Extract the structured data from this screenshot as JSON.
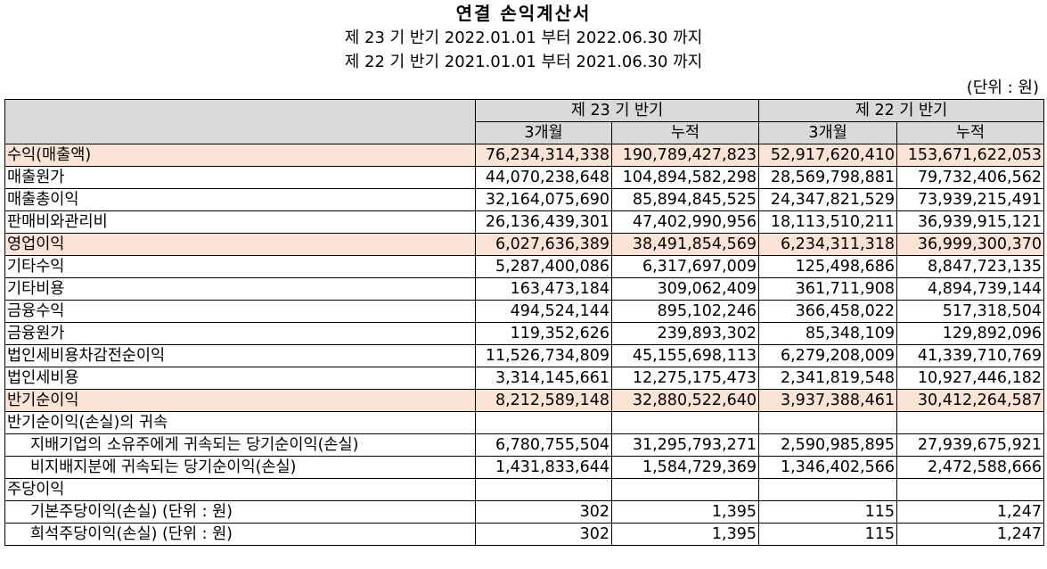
{
  "header": {
    "title": "연결 손익계산서",
    "period_current": "제 23 기 반기 2022.01.01 부터 2022.06.30 까지",
    "period_prior": "제 22 기 반기 2021.01.01 부터 2021.06.30 까지",
    "unit": "(단위 : 원)"
  },
  "table": {
    "period_headers": [
      "제 23 기 반기",
      "제 22 기 반기"
    ],
    "sub_headers": [
      "3개월",
      "누적",
      "3개월",
      "누적"
    ],
    "rows": [
      {
        "label": "수익(매출액)",
        "values": [
          "76,234,314,338",
          "190,789,427,823",
          "52,917,620,410",
          "153,671,622,053"
        ],
        "highlight": true,
        "indent": false
      },
      {
        "label": "매출원가",
        "values": [
          "44,070,238,648",
          "104,894,582,298",
          "28,569,798,881",
          "79,732,406,562"
        ],
        "highlight": false,
        "indent": false
      },
      {
        "label": "매출총이익",
        "values": [
          "32,164,075,690",
          "85,894,845,525",
          "24,347,821,529",
          "73,939,215,491"
        ],
        "highlight": false,
        "indent": false
      },
      {
        "label": "판매비와관리비",
        "values": [
          "26,136,439,301",
          "47,402,990,956",
          "18,113,510,211",
          "36,939,915,121"
        ],
        "highlight": false,
        "indent": false
      },
      {
        "label": "영업이익",
        "values": [
          "6,027,636,389",
          "38,491,854,569",
          "6,234,311,318",
          "36,999,300,370"
        ],
        "highlight": true,
        "indent": false
      },
      {
        "label": "기타수익",
        "values": [
          "5,287,400,086",
          "6,317,697,009",
          "125,498,686",
          "8,847,723,135"
        ],
        "highlight": false,
        "indent": false
      },
      {
        "label": "기타비용",
        "values": [
          "163,473,184",
          "309,062,409",
          "361,711,908",
          "4,894,739,144"
        ],
        "highlight": false,
        "indent": false
      },
      {
        "label": "금융수익",
        "values": [
          "494,524,144",
          "895,102,246",
          "366,458,022",
          "517,318,504"
        ],
        "highlight": false,
        "indent": false
      },
      {
        "label": "금융원가",
        "values": [
          "119,352,626",
          "239,893,302",
          "85,348,109",
          "129,892,096"
        ],
        "highlight": false,
        "indent": false
      },
      {
        "label": "법인세비용차감전순이익",
        "values": [
          "11,526,734,809",
          "45,155,698,113",
          "6,279,208,009",
          "41,339,710,769"
        ],
        "highlight": false,
        "indent": false
      },
      {
        "label": "법인세비용",
        "values": [
          "3,314,145,661",
          "12,275,175,473",
          "2,341,819,548",
          "10,927,446,182"
        ],
        "highlight": false,
        "indent": false
      },
      {
        "label": "반기순이익",
        "values": [
          "8,212,589,148",
          "32,880,522,640",
          "3,937,388,461",
          "30,412,264,587"
        ],
        "highlight": true,
        "indent": false
      },
      {
        "label": "반기순이익(손실)의 귀속",
        "values": [
          "",
          "",
          "",
          ""
        ],
        "highlight": false,
        "indent": false
      },
      {
        "label": "지배기업의 소유주에게 귀속되는 당기순이익(손실)",
        "values": [
          "6,780,755,504",
          "31,295,793,271",
          "2,590,985,895",
          "27,939,675,921"
        ],
        "highlight": false,
        "indent": true
      },
      {
        "label": "비지배지분에 귀속되는 당기순이익(손실)",
        "values": [
          "1,431,833,644",
          "1,584,729,369",
          "1,346,402,566",
          "2,472,588,666"
        ],
        "highlight": false,
        "indent": true
      },
      {
        "label": "주당이익",
        "values": [
          "",
          "",
          "",
          ""
        ],
        "highlight": false,
        "indent": false
      },
      {
        "label": "기본주당이익(손실) (단위 : 원)",
        "values": [
          "302",
          "1,395",
          "115",
          "1,247"
        ],
        "highlight": false,
        "indent": true
      },
      {
        "label": "희석주당이익(손실) (단위 : 원)",
        "values": [
          "302",
          "1,395",
          "115",
          "1,247"
        ],
        "highlight": false,
        "indent": true
      }
    ]
  },
  "colors": {
    "header_bg": "#d9d9d9",
    "highlight_row_bg": "#fbe4d5"
  }
}
